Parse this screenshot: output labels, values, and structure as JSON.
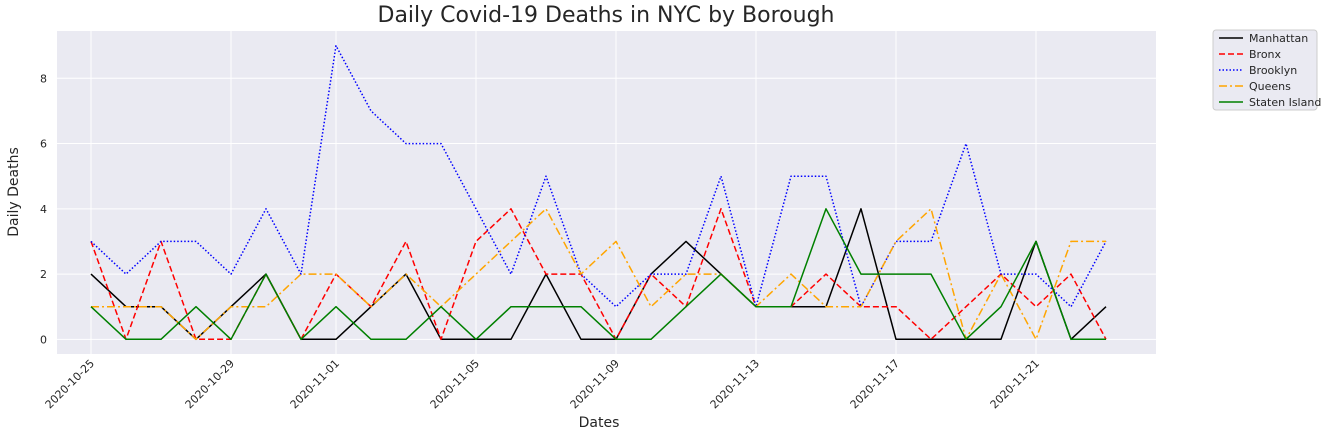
{
  "chart_data": {
    "type": "line",
    "title": "Daily Covid-19 Deaths in NYC by Borough",
    "xlabel": "Dates",
    "ylabel": "Daily Deaths",
    "x": [
      "2020-10-25",
      "2020-10-26",
      "2020-10-27",
      "2020-10-28",
      "2020-10-29",
      "2020-10-30",
      "2020-10-31",
      "2020-11-01",
      "2020-11-02",
      "2020-11-03",
      "2020-11-04",
      "2020-11-05",
      "2020-11-06",
      "2020-11-07",
      "2020-11-08",
      "2020-11-09",
      "2020-11-10",
      "2020-11-11",
      "2020-11-12",
      "2020-11-13",
      "2020-11-14",
      "2020-11-15",
      "2020-11-16",
      "2020-11-17",
      "2020-11-18",
      "2020-11-19",
      "2020-11-20",
      "2020-11-21",
      "2020-11-22",
      "2020-11-23"
    ],
    "xticks": [
      "2020-10-25",
      "2020-10-29",
      "2020-11-01",
      "2020-11-05",
      "2020-11-09",
      "2020-11-13",
      "2020-11-17",
      "2020-11-21"
    ],
    "yticks": [
      0,
      2,
      4,
      6,
      8
    ],
    "ylim": [
      -0.45,
      9.45
    ],
    "grid": true,
    "background": "#eaeaf2",
    "legend_position": "outside-top-right",
    "series": [
      {
        "name": "Manhattan",
        "color": "#000000",
        "dash": "solid",
        "values": [
          2,
          1,
          1,
          0,
          1,
          2,
          0,
          0,
          1,
          2,
          0,
          0,
          0,
          2,
          0,
          0,
          2,
          3,
          2,
          1,
          1,
          1,
          4,
          0,
          0,
          0,
          0,
          3,
          0,
          1
        ]
      },
      {
        "name": "Bronx",
        "color": "#ff0000",
        "dash": "dashed",
        "values": [
          3,
          0,
          3,
          0,
          0,
          2,
          0,
          2,
          1,
          3,
          0,
          3,
          4,
          2,
          2,
          0,
          2,
          1,
          4,
          1,
          1,
          2,
          1,
          1,
          0,
          1,
          2,
          1,
          2,
          0
        ]
      },
      {
        "name": "Brooklyn",
        "color": "#0000ff",
        "dash": "dotted",
        "values": [
          3,
          2,
          3,
          3,
          2,
          4,
          2,
          9,
          7,
          6,
          6,
          4,
          2,
          5,
          2,
          1,
          2,
          2,
          5,
          1,
          5,
          5,
          1,
          3,
          3,
          6,
          2,
          2,
          1,
          3
        ]
      },
      {
        "name": "Queens",
        "color": "#ffa500",
        "dash": "dashdot",
        "values": [
          1,
          1,
          1,
          0,
          1,
          1,
          2,
          2,
          1,
          2,
          1,
          2,
          3,
          4,
          2,
          3,
          1,
          2,
          2,
          1,
          2,
          1,
          1,
          3,
          4,
          0,
          2,
          0,
          3,
          3
        ]
      },
      {
        "name": "Staten Island",
        "color": "#008000",
        "dash": "solid",
        "values": [
          1,
          0,
          0,
          1,
          0,
          2,
          0,
          1,
          0,
          0,
          1,
          0,
          1,
          1,
          1,
          0,
          0,
          1,
          2,
          1,
          1,
          4,
          2,
          2,
          2,
          0,
          1,
          3,
          0,
          0
        ]
      }
    ]
  }
}
